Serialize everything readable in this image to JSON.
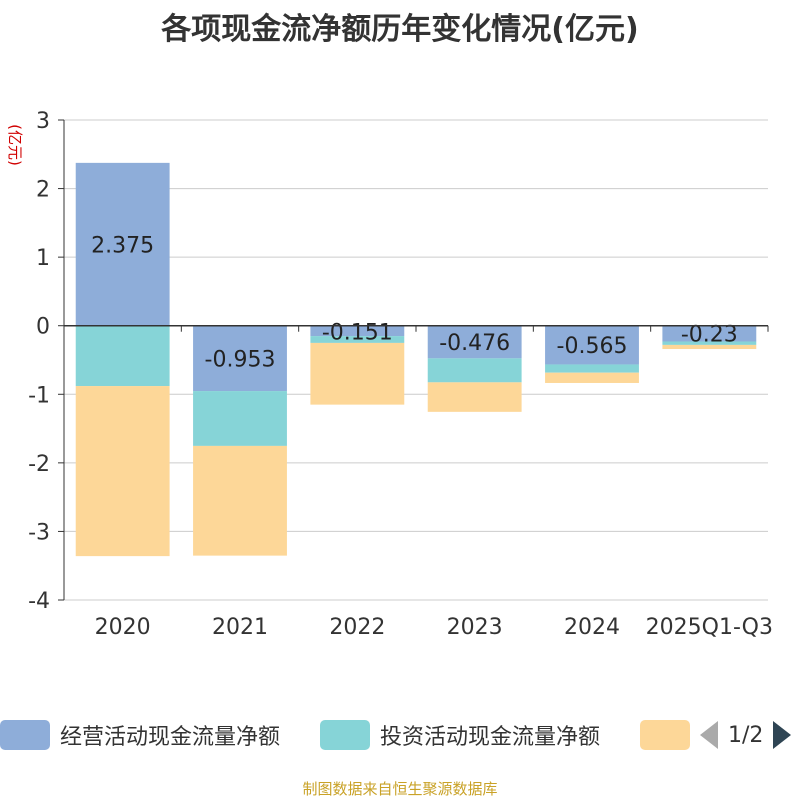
{
  "chart_data": {
    "type": "bar",
    "stacked": true,
    "title": "各项现金流净额历年变化情况(亿元)",
    "ylabel": "(亿元)",
    "ylim": [
      -4,
      3
    ],
    "yticks": [
      3,
      2,
      1,
      0,
      -1,
      -2,
      -3,
      -4
    ],
    "categories": [
      "2020",
      "2021",
      "2022",
      "2023",
      "2024",
      "2025Q1-Q3"
    ],
    "series": [
      {
        "name": "经营活动现金流量净额",
        "color": "#8eadd9",
        "values": [
          2.375,
          -0.953,
          -0.151,
          -0.476,
          -0.565,
          -0.23
        ],
        "labels": [
          "2.375",
          "-0.953",
          "-0.151",
          "-0.476",
          "-0.565",
          "-0.23"
        ]
      },
      {
        "name": "投资活动现金流量净额",
        "color": "#86d4d7",
        "values": [
          -0.88,
          -0.8,
          -0.1,
          -0.35,
          -0.12,
          -0.05
        ]
      },
      {
        "name": "",
        "color": "#fdd798",
        "values": [
          -2.48,
          -1.6,
          -0.9,
          -0.43,
          -0.15,
          -0.06
        ]
      }
    ]
  },
  "legend": {
    "items": [
      {
        "label": "经营活动现金流量净额",
        "color": "#8eadd9"
      },
      {
        "label": "投资活动现金流量净额",
        "color": "#86d4d7"
      },
      {
        "label": "",
        "color": "#fdd798"
      }
    ],
    "page": "1/2"
  },
  "source": "制图数据来自恒生聚源数据库"
}
